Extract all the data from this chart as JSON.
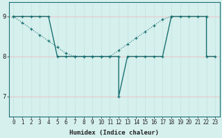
{
  "xlabel": "Humidex (Indice chaleur)",
  "bg_color": "#d6f0ee",
  "grid_color_v": "#c8e8e4",
  "grid_color_h_red": "#e8c8c8",
  "line_color": "#1a7070",
  "xmin": -0.5,
  "xmax": 23.5,
  "ymin": 6.5,
  "ymax": 9.35,
  "yticks": [
    7,
    8,
    9
  ],
  "xticks": [
    0,
    1,
    2,
    3,
    4,
    5,
    6,
    7,
    8,
    9,
    10,
    11,
    12,
    13,
    14,
    15,
    16,
    17,
    18,
    19,
    20,
    21,
    22,
    23
  ],
  "series1_x": [
    0,
    1,
    2,
    3,
    4,
    5,
    6,
    7,
    8,
    9,
    10,
    11,
    12,
    12,
    13,
    14,
    15,
    16,
    17,
    18,
    19,
    20,
    21,
    22,
    22,
    23
  ],
  "series1_y": [
    9,
    9,
    9,
    9,
    9,
    8,
    8,
    8,
    8,
    8,
    8,
    8,
    8,
    7,
    8,
    8,
    8,
    8,
    8,
    9,
    9,
    9,
    9,
    9,
    8,
    8
  ],
  "series2_x": [
    0,
    1,
    2,
    3,
    4,
    5,
    6,
    7,
    8,
    9,
    10,
    11,
    12,
    13,
    14,
    15,
    16,
    17,
    18
  ],
  "series2_y": [
    9,
    8.846,
    8.692,
    8.538,
    8.385,
    8.231,
    8.077,
    8.0,
    8.0,
    8.0,
    8.0,
    8.0,
    8.154,
    8.308,
    8.462,
    8.615,
    8.769,
    8.923,
    9
  ]
}
